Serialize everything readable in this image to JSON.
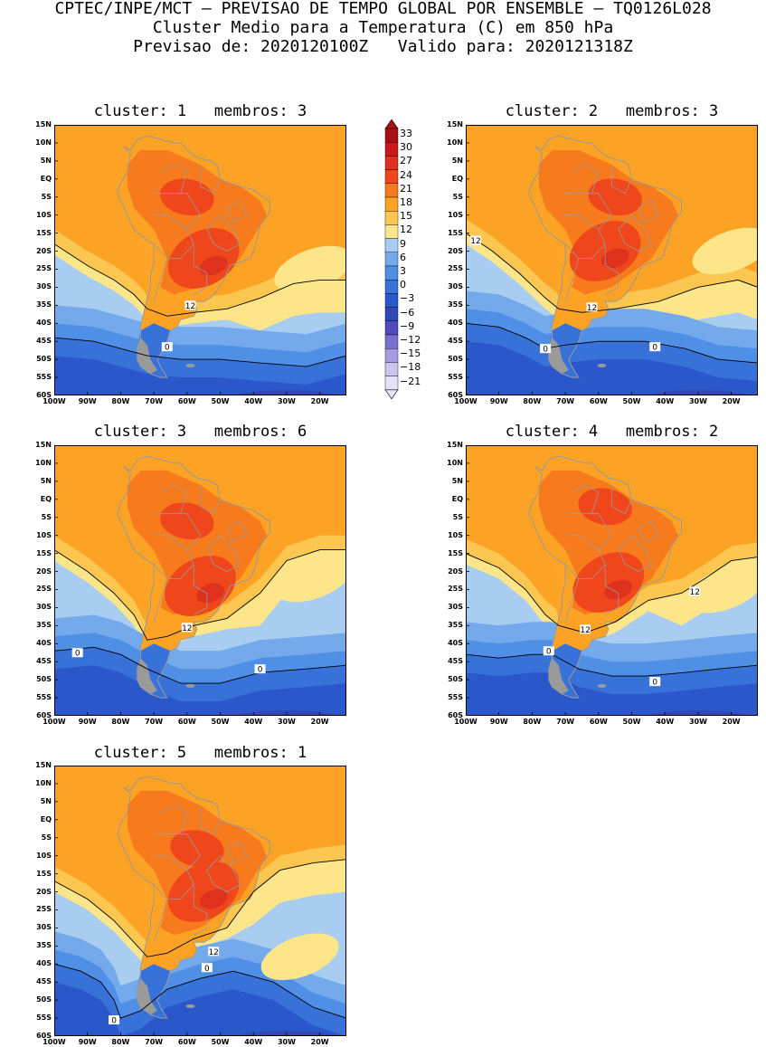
{
  "header": {
    "line1": "CPTEC/INPE/MCT – PREVISAO DE TEMPO GLOBAL POR ENSEMBLE – TQ0126L028",
    "line2": "Cluster Medio para a Temperatura (C) em 850 hPa",
    "line3": "Previsao de: 2020120100Z   Valido para: 2020121318Z"
  },
  "panels": [
    {
      "title": "cluster: 1   membros: 3",
      "cont12": "12",
      "cont0": "0"
    },
    {
      "title": "cluster: 2   membros: 3",
      "cont12": "12",
      "cont12b": "12",
      "cont0": "0",
      "cont0b": "0"
    },
    {
      "title": "cluster: 3   membros: 6",
      "cont12": "12",
      "cont0": "0",
      "cont0b": "0"
    },
    {
      "title": "cluster: 4   membros: 2",
      "cont12": "12",
      "cont12b": "12",
      "cont0": "0",
      "cont0b": "0"
    },
    {
      "title": "cluster: 5   membros: 1",
      "cont12": "12",
      "cont0": "0",
      "cont0b": "0"
    }
  ],
  "axes": {
    "lat_labels": [
      "15N",
      "10N",
      "5N",
      "EQ",
      "5S",
      "10S",
      "15S",
      "20S",
      "25S",
      "30S",
      "35S",
      "40S",
      "45S",
      "50S",
      "55S",
      "60S"
    ],
    "lon_labels": [
      "100W",
      "90W",
      "80W",
      "70W",
      "60W",
      "50W",
      "40W",
      "30W",
      "20W"
    ]
  },
  "legend": {
    "labels": [
      "33",
      "30",
      "27",
      "24",
      "21",
      "18",
      "15",
      "12",
      "9",
      "6",
      "3",
      "0",
      "−3",
      "−6",
      "−9",
      "−12",
      "−15",
      "−18",
      "−21"
    ],
    "colors": [
      "#a50f15",
      "#cb181d",
      "#e0301e",
      "#f0461b",
      "#f77a1c",
      "#fca326",
      "#fcc750",
      "#fde68a",
      "#a9cdf0",
      "#74aaeb",
      "#4f8fe6",
      "#3872d9",
      "#2a57c9",
      "#3346b8",
      "#4f4bbd",
      "#7a6ed0",
      "#a79be0",
      "#cdc3ef",
      "#e6e0f8"
    ]
  }
}
